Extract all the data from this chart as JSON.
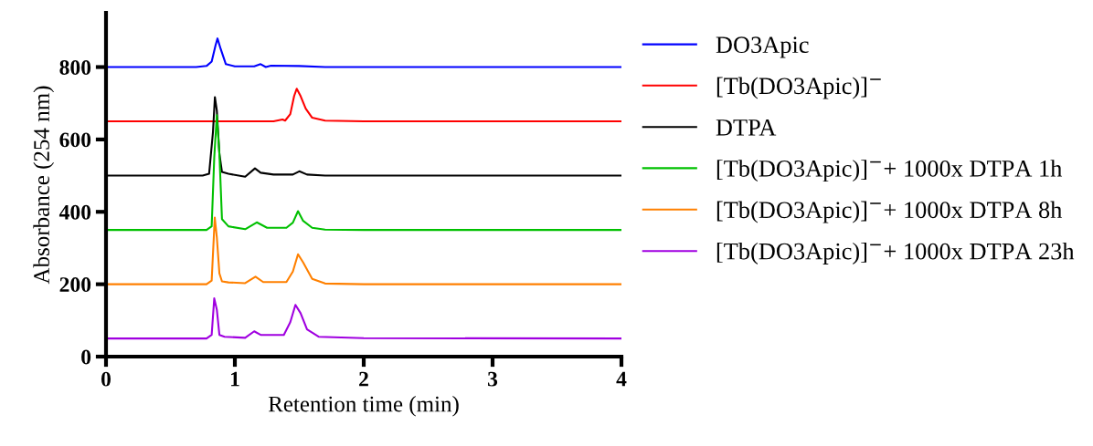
{
  "chart_data": {
    "type": "line",
    "xlabel": "Retention time (min)",
    "ylabel": "Absorbance (254 nm)",
    "xlim": [
      0,
      4
    ],
    "xticks": [
      0,
      1,
      2,
      3,
      4
    ],
    "ylim": [
      0,
      950
    ],
    "yticks": [
      0,
      200,
      400,
      600,
      800
    ],
    "grid": false,
    "legend": "right",
    "marker": "none",
    "line_style": "solid",
    "series": [
      {
        "name": "DO3Apic",
        "color": "#0000ff",
        "x": [
          0,
          0.7,
          0.78,
          0.82,
          0.85,
          0.865,
          0.89,
          0.93,
          1.0,
          1.15,
          1.2,
          1.24,
          1.28,
          1.5,
          1.7,
          2.0,
          4.0
        ],
        "values": [
          800,
          800,
          803,
          815,
          860,
          879,
          850,
          808,
          802,
          802,
          808,
          800,
          804,
          803,
          800,
          800,
          800
        ]
      },
      {
        "name": "[Tb(DO3Apic)]$^{−}$",
        "color": "#ff0000",
        "x": [
          0,
          1.0,
          1.3,
          1.37,
          1.39,
          1.43,
          1.46,
          1.48,
          1.51,
          1.55,
          1.6,
          1.7,
          2.0,
          4.0
        ],
        "values": [
          650,
          650,
          650,
          655,
          652,
          670,
          720,
          740,
          720,
          685,
          660,
          652,
          650,
          650
        ]
      },
      {
        "name": "DTPA",
        "color": "#000000",
        "x": [
          0,
          0.75,
          0.8,
          0.83,
          0.845,
          0.86,
          0.88,
          0.9,
          0.95,
          1.08,
          1.156,
          1.2,
          1.3,
          1.45,
          1.5,
          1.56,
          1.7,
          2.0,
          4.0
        ],
        "values": [
          500,
          500,
          505,
          620,
          717,
          680,
          560,
          510,
          505,
          497,
          520,
          508,
          503,
          503,
          512,
          503,
          500,
          500,
          500
        ]
      },
      {
        "name": "[Tb(DO3Apic)]$^{−}$+ 1000x DTPA 1h",
        "color": "#00c000",
        "x": [
          0,
          0.78,
          0.82,
          0.84,
          0.86,
          0.88,
          0.9,
          0.95,
          1.08,
          1.17,
          1.25,
          1.4,
          1.45,
          1.49,
          1.53,
          1.6,
          1.7,
          2.0,
          4.0
        ],
        "values": [
          350,
          350,
          360,
          550,
          667,
          560,
          380,
          360,
          352,
          371,
          356,
          356,
          370,
          402,
          375,
          356,
          351,
          350,
          350
        ]
      },
      {
        "name": "[Tb(DO3Apic)]$^{−}$+ 1000x DTPA 8h",
        "color": "#ff8000",
        "x": [
          0,
          0.78,
          0.82,
          0.844,
          0.86,
          0.88,
          0.9,
          0.95,
          1.08,
          1.16,
          1.22,
          1.4,
          1.45,
          1.49,
          1.53,
          1.6,
          1.7,
          2.0,
          4.0
        ],
        "values": [
          200,
          200,
          210,
          384,
          330,
          230,
          208,
          205,
          203,
          221,
          206,
          206,
          235,
          283,
          260,
          215,
          202,
          200,
          200
        ]
      },
      {
        "name": "[Tb(DO3Apic)]$^{−}$+ 1000x DTPA 23h",
        "color": "#a000e0",
        "x": [
          0,
          0.78,
          0.82,
          0.84,
          0.86,
          0.88,
          0.92,
          1.08,
          1.15,
          1.2,
          1.38,
          1.43,
          1.47,
          1.51,
          1.56,
          1.65,
          2.0,
          4.0
        ],
        "values": [
          50,
          50,
          60,
          161,
          130,
          60,
          55,
          52,
          70,
          60,
          60,
          95,
          143,
          120,
          75,
          55,
          51,
          50
        ]
      }
    ]
  }
}
